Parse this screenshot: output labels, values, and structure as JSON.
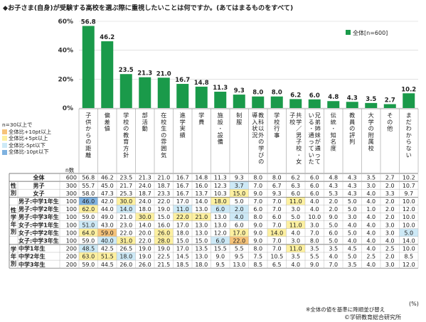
{
  "title": "◆お子さま(自身)が受験する高校を選ぶ際に重視したいことは何ですか。(あてはまるものをすべて)",
  "legend_box": {
    "heading": "n=30以上で",
    "items": [
      {
        "label": "全体比+10pt以上",
        "color": "#f6c37a"
      },
      {
        "label": "全体比+5pt以上",
        "color": "#fdf0a0"
      },
      {
        "label": "全体比-5pt以下",
        "color": "#cde9f6"
      },
      {
        "label": "全体比-10pt以下",
        "color": "#7fb2e0"
      }
    ]
  },
  "n_label": "n数",
  "unit": "(%)",
  "note": "※全体の値を基準に降順並び替え",
  "credit": "©学研教育総合研究所",
  "colors": {
    "bar": "#1a9a4a",
    "pos10": "#f6c37a",
    "pos5": "#fdf0a0",
    "neg5": "#cde9f6",
    "neg10": "#7fb2e0"
  },
  "chart_data": {
    "type": "bar",
    "categories": [
      "子供からの距離",
      "偏差値",
      "学校の教育方針",
      "部活動",
      "在校生の雰囲気",
      "進学実績",
      "学費",
      "施設・設備",
      "制服",
      "教科以外の学びの導入状況",
      "学校行事",
      "共学/男子校・女子校",
      "兄弟姉妹が通っている・通っていた",
      "伝統・知名度",
      "教員の評判",
      "大学の附属校",
      "その他",
      "まだわからない"
    ],
    "series": [
      {
        "name": "全体[n=600]",
        "values": [
          56.8,
          46.2,
          23.5,
          21.3,
          21.0,
          16.7,
          14.8,
          11.3,
          9.3,
          8.0,
          8.0,
          6.2,
          6.0,
          4.8,
          4.3,
          3.5,
          2.7,
          10.2
        ]
      }
    ],
    "ylim": [
      0,
      60
    ],
    "yticks": [
      "0%",
      "20%",
      "40%",
      "60%"
    ],
    "legend": "top-right"
  },
  "table": {
    "groups": [
      {
        "label": "",
        "rows": [
          0
        ]
      },
      {
        "label": "性別",
        "rows": [
          1,
          2
        ]
      },
      {
        "label": "性学年別",
        "rows": [
          3,
          4,
          5,
          6,
          7,
          8
        ]
      },
      {
        "label": "学年別",
        "rows": [
          9,
          10,
          11
        ]
      }
    ],
    "rows": [
      {
        "label": "全体",
        "n": "600",
        "values": [
          "56.8",
          "46.2",
          "23.5",
          "21.3",
          "21.0",
          "16.7",
          "14.8",
          "11.3",
          "9.3",
          "8.0",
          "8.0",
          "6.2",
          "6.0",
          "4.8",
          "4.3",
          "3.5",
          "2.7",
          "10.2"
        ],
        "hl": {}
      },
      {
        "label": "男子",
        "n": "300",
        "values": [
          "55.7",
          "45.0",
          "21.7",
          "24.0",
          "18.7",
          "16.7",
          "16.0",
          "12.3",
          "3.7",
          "7.0",
          "6.7",
          "6.3",
          "6.0",
          "4.3",
          "4.3",
          "3.0",
          "2.0",
          "10.7"
        ],
        "hl": {
          "8": "neg5"
        }
      },
      {
        "label": "女子",
        "n": "300",
        "values": [
          "58.0",
          "47.3",
          "25.3",
          "18.7",
          "23.3",
          "16.7",
          "13.7",
          "10.3",
          "15.0",
          "9.0",
          "9.3",
          "6.0",
          "6.0",
          "5.3",
          "4.3",
          "4.0",
          "3.3",
          "9.7"
        ],
        "hl": {
          "8": "pos5"
        }
      },
      {
        "label": "男子:中学1年生",
        "n": "100",
        "values": [
          "46.0",
          "42.0",
          "30.0",
          "24.0",
          "22.0",
          "17.0",
          "14.0",
          "18.0",
          "5.0",
          "7.0",
          "7.0",
          "11.0",
          "4.0",
          "2.0",
          "5.0",
          "4.0",
          "2.0",
          "10.0"
        ],
        "hl": {
          "0": "neg10",
          "2": "pos5",
          "7": "pos5",
          "11": "pos5"
        }
      },
      {
        "label": "男子:中学2年生",
        "n": "100",
        "values": [
          "62.0",
          "44.0",
          "14.0",
          "18.0",
          "19.0",
          "11.0",
          "13.0",
          "6.0",
          "2.0",
          "6.0",
          "7.0",
          "3.0",
          "4.0",
          "2.0",
          "5.0",
          "1.0",
          "2.0",
          "12.0"
        ],
        "hl": {
          "0": "pos5",
          "2": "neg5",
          "5": "neg5",
          "7": "neg5",
          "8": "neg5"
        }
      },
      {
        "label": "男子:中学3年生",
        "n": "100",
        "values": [
          "59.0",
          "49.0",
          "21.0",
          "30.0",
          "15.0",
          "22.0",
          "21.0",
          "13.0",
          "4.0",
          "8.0",
          "6.0",
          "5.0",
          "10.0",
          "9.0",
          "3.0",
          "4.0",
          "2.0",
          "10.0"
        ],
        "hl": {
          "3": "pos5",
          "5": "pos5",
          "6": "pos5",
          "8": "neg5"
        }
      },
      {
        "label": "女子:中学1年生",
        "n": "100",
        "values": [
          "51.0",
          "43.0",
          "23.0",
          "14.0",
          "16.0",
          "17.0",
          "13.0",
          "13.0",
          "6.0",
          "9.0",
          "7.0",
          "11.0",
          "3.0",
          "5.0",
          "4.0",
          "4.0",
          "3.0",
          "10.0"
        ],
        "hl": {
          "0": "neg5",
          "11": "pos5"
        }
      },
      {
        "label": "女子:中学2年生",
        "n": "100",
        "values": [
          "64.0",
          "59.0",
          "22.0",
          "20.0",
          "26.0",
          "18.0",
          "13.0",
          "12.0",
          "17.0",
          "9.0",
          "14.0",
          "4.0",
          "7.0",
          "6.0",
          "5.0",
          "4.0",
          "3.0",
          "5.0"
        ],
        "hl": {
          "0": "pos5",
          "1": "pos10",
          "4": "pos5",
          "8": "pos5",
          "10": "pos5",
          "17": "neg5"
        }
      },
      {
        "label": "女子:中学3年生",
        "n": "100",
        "values": [
          "59.0",
          "40.0",
          "31.0",
          "22.0",
          "28.0",
          "15.0",
          "15.0",
          "6.0",
          "22.0",
          "9.0",
          "7.0",
          "3.0",
          "8.0",
          "5.0",
          "4.0",
          "4.0",
          "4.0",
          "14.0"
        ],
        "hl": {
          "1": "neg5",
          "2": "pos5",
          "4": "pos5",
          "7": "neg5",
          "8": "pos10"
        }
      },
      {
        "label": "中学1年生",
        "n": "200",
        "values": [
          "48.5",
          "42.5",
          "26.5",
          "19.0",
          "19.0",
          "17.0",
          "13.5",
          "15.5",
          "5.5",
          "8.0",
          "7.0",
          "11.0",
          "3.5",
          "3.5",
          "4.5",
          "4.0",
          "2.5",
          "10.0"
        ],
        "hl": {
          "0": "neg5",
          "11": "pos5"
        }
      },
      {
        "label": "中学2年生",
        "n": "200",
        "values": [
          "63.0",
          "51.5",
          "18.0",
          "19.0",
          "22.5",
          "14.5",
          "13.0",
          "9.0",
          "9.5",
          "7.5",
          "10.5",
          "3.5",
          "5.5",
          "4.0",
          "5.0",
          "2.5",
          "2.0",
          "8.5"
        ],
        "hl": {
          "0": "pos5",
          "1": "pos5",
          "2": "neg5"
        }
      },
      {
        "label": "中学3年生",
        "n": "200",
        "values": [
          "59.0",
          "44.5",
          "26.0",
          "26.0",
          "21.5",
          "18.5",
          "18.0",
          "9.5",
          "13.0",
          "8.5",
          "6.5",
          "4.0",
          "9.0",
          "7.0",
          "3.5",
          "4.0",
          "3.0",
          "12.0"
        ],
        "hl": {}
      }
    ]
  }
}
